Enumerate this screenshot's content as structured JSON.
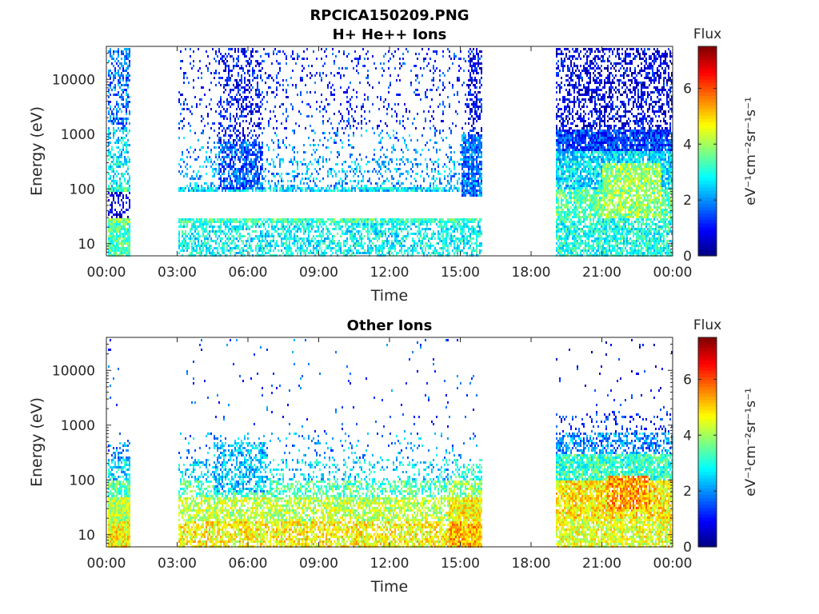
{
  "figure_title": "RPCICA150209.PNG",
  "chart_data": [
    {
      "type": "heatmap",
      "title": "H+ He++ Ions",
      "xlabel": "Time",
      "ylabel": "Energy (eV)",
      "x_ticks": [
        "00:00",
        "03:00",
        "06:00",
        "09:00",
        "12:00",
        "15:00",
        "18:00",
        "21:00",
        "00:00"
      ],
      "x_range_hours": [
        0,
        24
      ],
      "y_scale": "log",
      "y_range": [
        6,
        40000
      ],
      "y_ticks": [
        {
          "value": 10,
          "label": "10"
        },
        {
          "value": 100,
          "label": "100"
        },
        {
          "value": 1000,
          "label": "1000"
        },
        {
          "value": 10000,
          "label": "10000"
        }
      ],
      "data_gaps_hours": [
        [
          1.0,
          3.0
        ],
        [
          15.9,
          19.0
        ]
      ],
      "colorbar": {
        "title": "Flux",
        "label": "eV⁻¹cm⁻²sr⁻¹s⁻¹",
        "range": [
          0,
          7.5
        ],
        "ticks": [
          0,
          2,
          4,
          6
        ],
        "colormap": "jet"
      }
    },
    {
      "type": "heatmap",
      "title": "Other Ions",
      "xlabel": "Time",
      "ylabel": "Energy (eV)",
      "x_ticks": [
        "00:00",
        "03:00",
        "06:00",
        "09:00",
        "12:00",
        "15:00",
        "18:00",
        "21:00",
        "00:00"
      ],
      "x_range_hours": [
        0,
        24
      ],
      "y_scale": "log",
      "y_range": [
        6,
        40000
      ],
      "y_ticks": [
        {
          "value": 10,
          "label": "10"
        },
        {
          "value": 100,
          "label": "100"
        },
        {
          "value": 1000,
          "label": "1000"
        },
        {
          "value": 10000,
          "label": "10000"
        }
      ],
      "data_gaps_hours": [
        [
          1.0,
          3.0
        ],
        [
          15.9,
          19.0
        ]
      ],
      "colorbar": {
        "title": "Flux",
        "label": "eV⁻¹cm⁻²sr⁻¹s⁻¹",
        "range": [
          0,
          7.5
        ],
        "ticks": [
          0,
          2,
          4,
          6
        ],
        "colormap": "jet"
      }
    }
  ]
}
